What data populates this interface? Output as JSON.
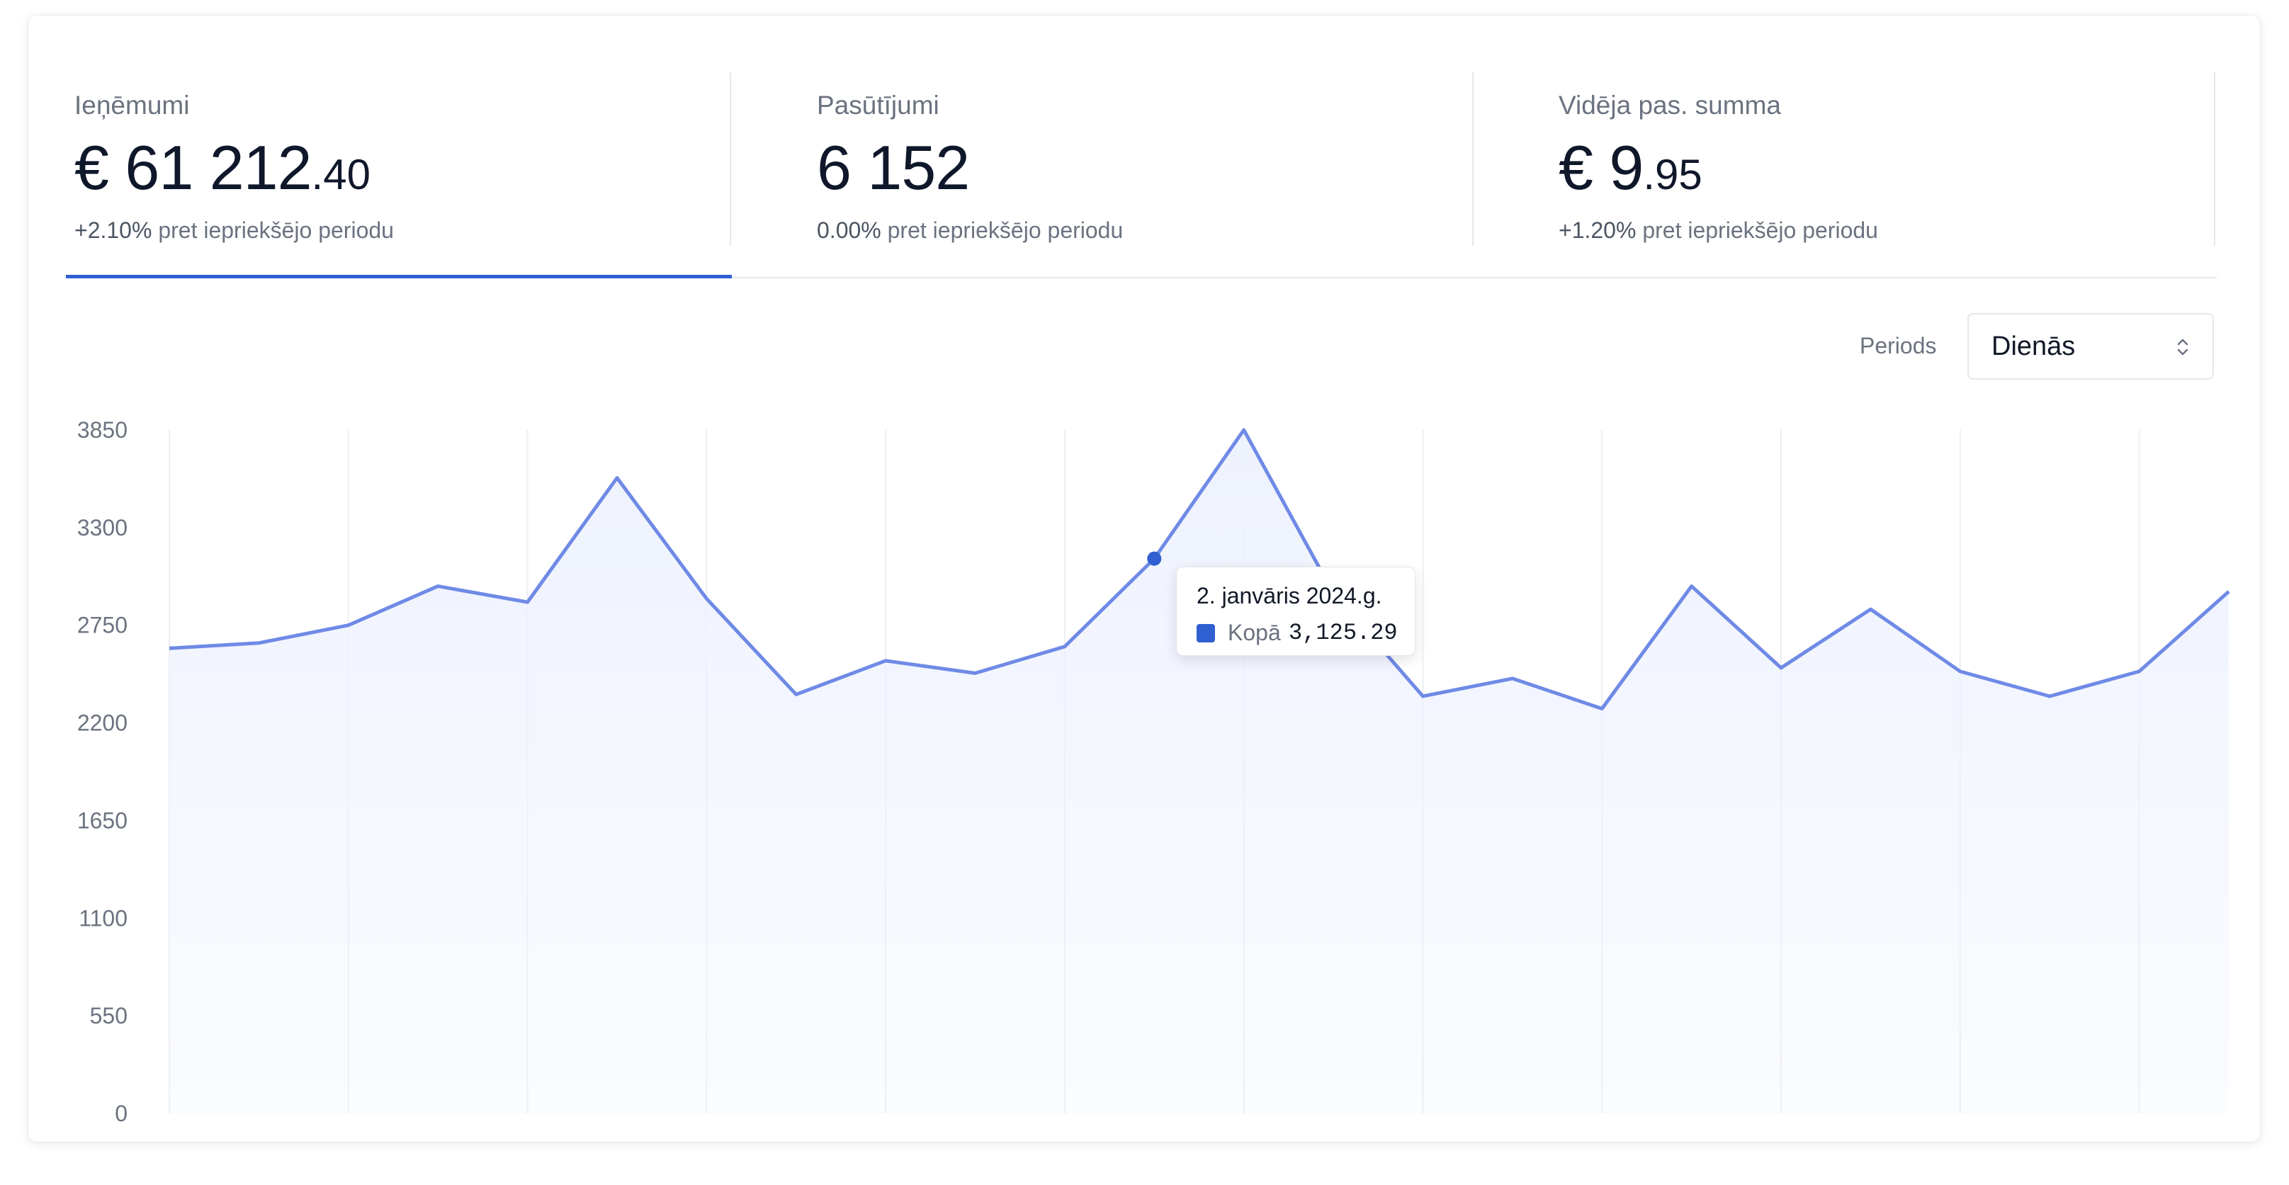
{
  "stats": [
    {
      "label": "Ieņēmumi",
      "value_main": "€ 61 212",
      "value_dec": ".40",
      "change_pct": "+2.10%",
      "change_text": " pret iepriekšējo periodu"
    },
    {
      "label": "Pasūtījumi",
      "value_main": "6 152",
      "value_dec": "",
      "change_pct": "0.00%",
      "change_text": " pret iepriekšējo periodu"
    },
    {
      "label": "Vidēja pas. summa",
      "value_main": "€ 9",
      "value_dec": ".95",
      "change_pct": "+1.20%",
      "change_text": " pret iepriekšējo periodu"
    }
  ],
  "active_tab": 0,
  "period": {
    "label": "Periods",
    "value": "Dienās"
  },
  "tooltip": {
    "date": "2. janvāris 2024.g.",
    "series": "Kopā",
    "value": "3,125.29"
  },
  "colors": {
    "accent": "#2f5fd0",
    "line": "#6f8ae6",
    "area": "#eef2fd"
  },
  "chart_data": {
    "type": "area",
    "yticks": [
      0,
      550,
      1100,
      1650,
      2200,
      2750,
      3300,
      3850
    ],
    "ylim": [
      0,
      3850
    ],
    "grid": "vertical",
    "series": [
      {
        "name": "Kopā",
        "values": [
          2620,
          2650,
          2750,
          2970,
          2880,
          3580,
          2900,
          2360,
          2550,
          2480,
          2630,
          3125.29,
          3850,
          2930,
          2350,
          2450,
          2280,
          2970,
          2510,
          2840,
          2490,
          2350,
          2490,
          2940
        ]
      }
    ],
    "highlight_index": 11
  }
}
